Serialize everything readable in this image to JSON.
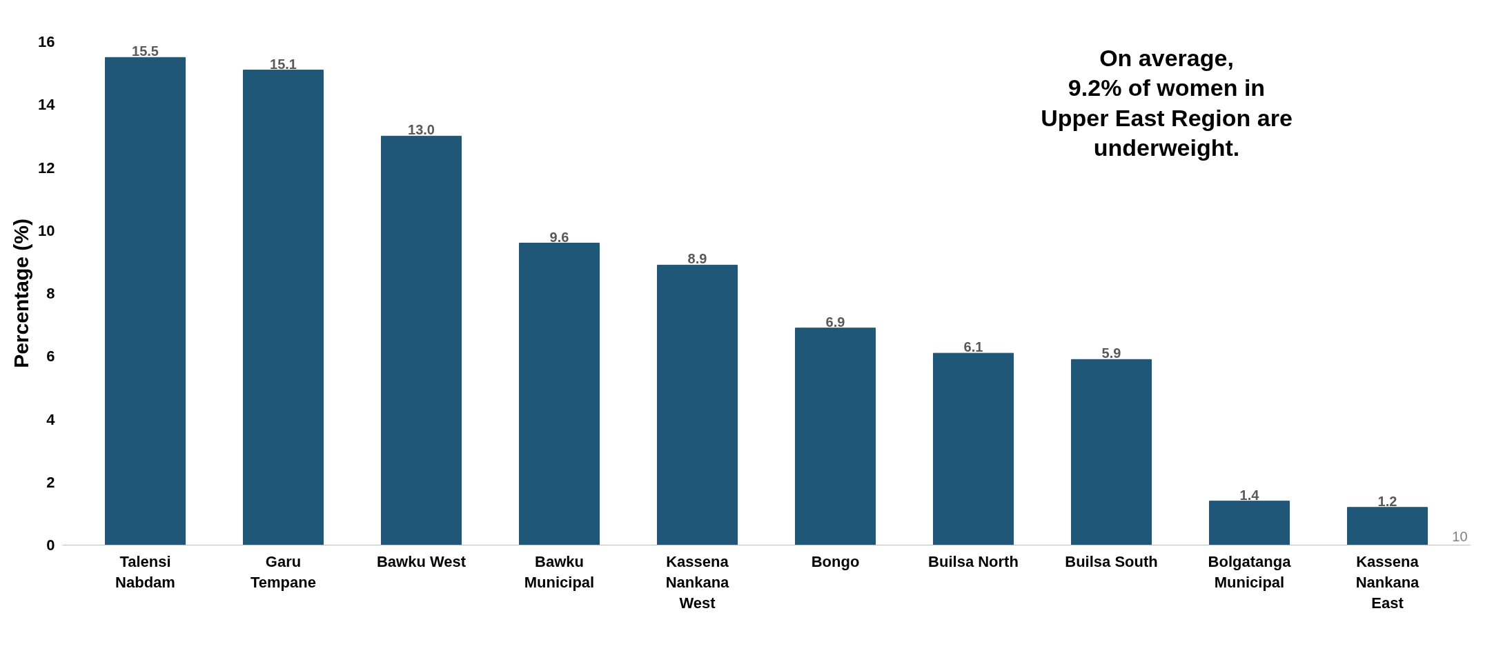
{
  "chart_data": {
    "type": "bar",
    "ylabel": "Percentage (%)",
    "categories": [
      "Talensi\nNabdam",
      "Garu\nTempane",
      "Bawku West",
      "Bawku\nMunicipal",
      "Kassena\nNankana\nWest",
      "Bongo",
      "Builsa North",
      "Builsa South",
      "Bolgatanga\nMunicipal",
      "Kassena\nNankana\nEast"
    ],
    "values": [
      15.5,
      15.1,
      13.0,
      9.6,
      8.9,
      6.9,
      6.1,
      5.9,
      1.4,
      1.2
    ],
    "value_labels": [
      "15.5",
      "15.1",
      "13.0",
      "9.6",
      "8.9",
      "6.9",
      "6.1",
      "5.9",
      "1.4",
      "1.2"
    ],
    "color": "#1f5779",
    "ylim": [
      0,
      16
    ],
    "yticks": [
      0,
      2,
      4,
      6,
      8,
      10,
      12,
      14,
      16
    ],
    "grid": false,
    "annotations": [
      "On average,\n9.2% of women in\nUpper East Region are\nunderweight.",
      "10"
    ]
  }
}
